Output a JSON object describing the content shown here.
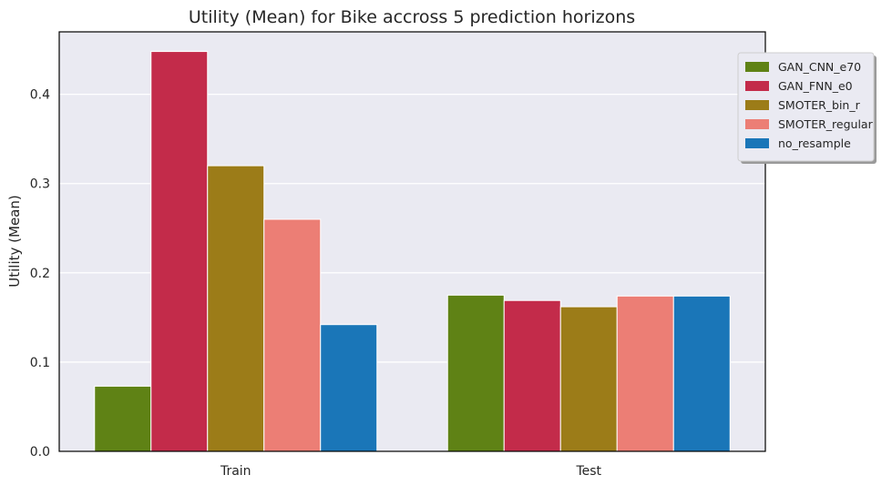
{
  "chart_data": {
    "type": "bar",
    "title": "Utility (Mean) for Bike accross 5 prediction horizons",
    "xlabel": "",
    "ylabel": "Utility (Mean)",
    "categories": [
      "Train",
      "Test"
    ],
    "ylim": [
      0,
      0.47
    ],
    "yticks": [
      "0.0",
      "0.1",
      "0.2",
      "0.3",
      "0.4"
    ],
    "grid": true,
    "legend_position": "top-right",
    "series": [
      {
        "name": "GAN_CNN_e70",
        "color": "#5f8215",
        "values": [
          0.073,
          0.175
        ]
      },
      {
        "name": "GAN_FNN_e0",
        "color": "#c32b4a",
        "values": [
          0.448,
          0.169
        ]
      },
      {
        "name": "SMOTER_bin_r",
        "color": "#9c7c18",
        "values": [
          0.32,
          0.162
        ]
      },
      {
        "name": "SMOTER_regular",
        "color": "#ec7e75",
        "values": [
          0.26,
          0.174
        ]
      },
      {
        "name": "no_resample",
        "color": "#1a76b8",
        "values": [
          0.142,
          0.174
        ]
      }
    ]
  }
}
